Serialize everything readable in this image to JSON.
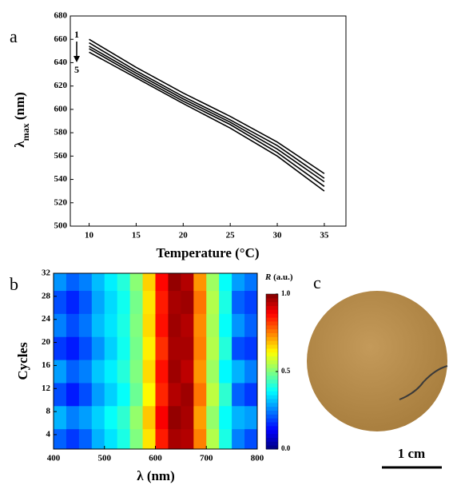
{
  "chart_data": [
    {
      "type": "line",
      "panel_label": "a",
      "x_label": "Temperature (°C)",
      "y_label": {
        "symbol": "λ",
        "subscript": "max",
        "unit": " (nm)"
      },
      "annotations": [
        "1",
        "5"
      ],
      "x": [
        10,
        15,
        20,
        25,
        30,
        35
      ],
      "series": [
        {
          "color": "#000000",
          "values": [
            660,
            636,
            614,
            594,
            572,
            545
          ]
        },
        {
          "color": "#000000",
          "values": [
            657,
            633,
            611,
            591,
            569,
            541
          ]
        },
        {
          "color": "#000000",
          "values": [
            654,
            631,
            609,
            589,
            566,
            538
          ]
        },
        {
          "color": "#000000",
          "values": [
            652,
            629,
            607,
            587,
            563,
            534
          ]
        },
        {
          "color": "#000000",
          "values": [
            649,
            627,
            605,
            584,
            560,
            530
          ]
        }
      ],
      "xlim": [
        8,
        37.3
      ],
      "xticks": [
        10,
        15,
        20,
        25,
        30,
        35
      ],
      "ylim": [
        500,
        680
      ],
      "yticks": [
        500,
        520,
        540,
        560,
        580,
        600,
        620,
        640,
        660,
        680
      ]
    },
    {
      "type": "heatmap",
      "panel_label": "b",
      "x_label": "λ (nm)",
      "y_label": "Cycles",
      "colorbar_label": {
        "symbol": "R",
        "unit": " (a.u.)"
      },
      "colormap": "jet",
      "x_bins": [
        400,
        425,
        450,
        475,
        500,
        525,
        550,
        575,
        600,
        625,
        650,
        675,
        700,
        725,
        750,
        775,
        800
      ],
      "y_bins": [
        1.5,
        5,
        9,
        13,
        17,
        21,
        25,
        29,
        32
      ],
      "z": [
        [
          0.22,
          0.18,
          0.22,
          0.3,
          0.35,
          0.4,
          0.5,
          0.65,
          0.85,
          0.96,
          0.95,
          0.75,
          0.55,
          0.4,
          0.25,
          0.2
        ],
        [
          0.3,
          0.25,
          0.28,
          0.33,
          0.38,
          0.42,
          0.52,
          0.68,
          0.88,
          0.98,
          0.96,
          0.72,
          0.52,
          0.38,
          0.3,
          0.28
        ],
        [
          0.2,
          0.15,
          0.2,
          0.28,
          0.33,
          0.38,
          0.48,
          0.63,
          0.84,
          0.95,
          0.97,
          0.76,
          0.56,
          0.42,
          0.22,
          0.18
        ],
        [
          0.28,
          0.22,
          0.25,
          0.32,
          0.36,
          0.41,
          0.5,
          0.66,
          0.86,
          0.97,
          0.94,
          0.73,
          0.53,
          0.37,
          0.3,
          0.25
        ],
        [
          0.18,
          0.15,
          0.2,
          0.27,
          0.33,
          0.39,
          0.49,
          0.64,
          0.83,
          0.96,
          0.96,
          0.75,
          0.55,
          0.41,
          0.2,
          0.18
        ],
        [
          0.25,
          0.2,
          0.24,
          0.31,
          0.35,
          0.4,
          0.5,
          0.66,
          0.86,
          0.97,
          0.95,
          0.74,
          0.54,
          0.38,
          0.27,
          0.22
        ],
        [
          0.2,
          0.16,
          0.21,
          0.29,
          0.34,
          0.39,
          0.49,
          0.65,
          0.85,
          0.96,
          0.97,
          0.76,
          0.55,
          0.4,
          0.22,
          0.19
        ],
        [
          0.27,
          0.22,
          0.25,
          0.31,
          0.36,
          0.41,
          0.51,
          0.67,
          0.87,
          0.98,
          0.95,
          0.73,
          0.53,
          0.38,
          0.28,
          0.24
        ]
      ],
      "xlim": [
        400,
        800
      ],
      "xticks": [
        400,
        500,
        600,
        700,
        800
      ],
      "ylim": [
        1.5,
        32
      ],
      "yticks": [
        4,
        8,
        12,
        16,
        20,
        24,
        28,
        32
      ],
      "clim": [
        0,
        1
      ],
      "cticks": [
        {
          "value": 0,
          "label": "0.0"
        },
        0.5,
        {
          "value": 1,
          "label": "1.0"
        }
      ]
    }
  ],
  "photo": {
    "panel_label": "c",
    "scale_bar": "1 cm"
  }
}
